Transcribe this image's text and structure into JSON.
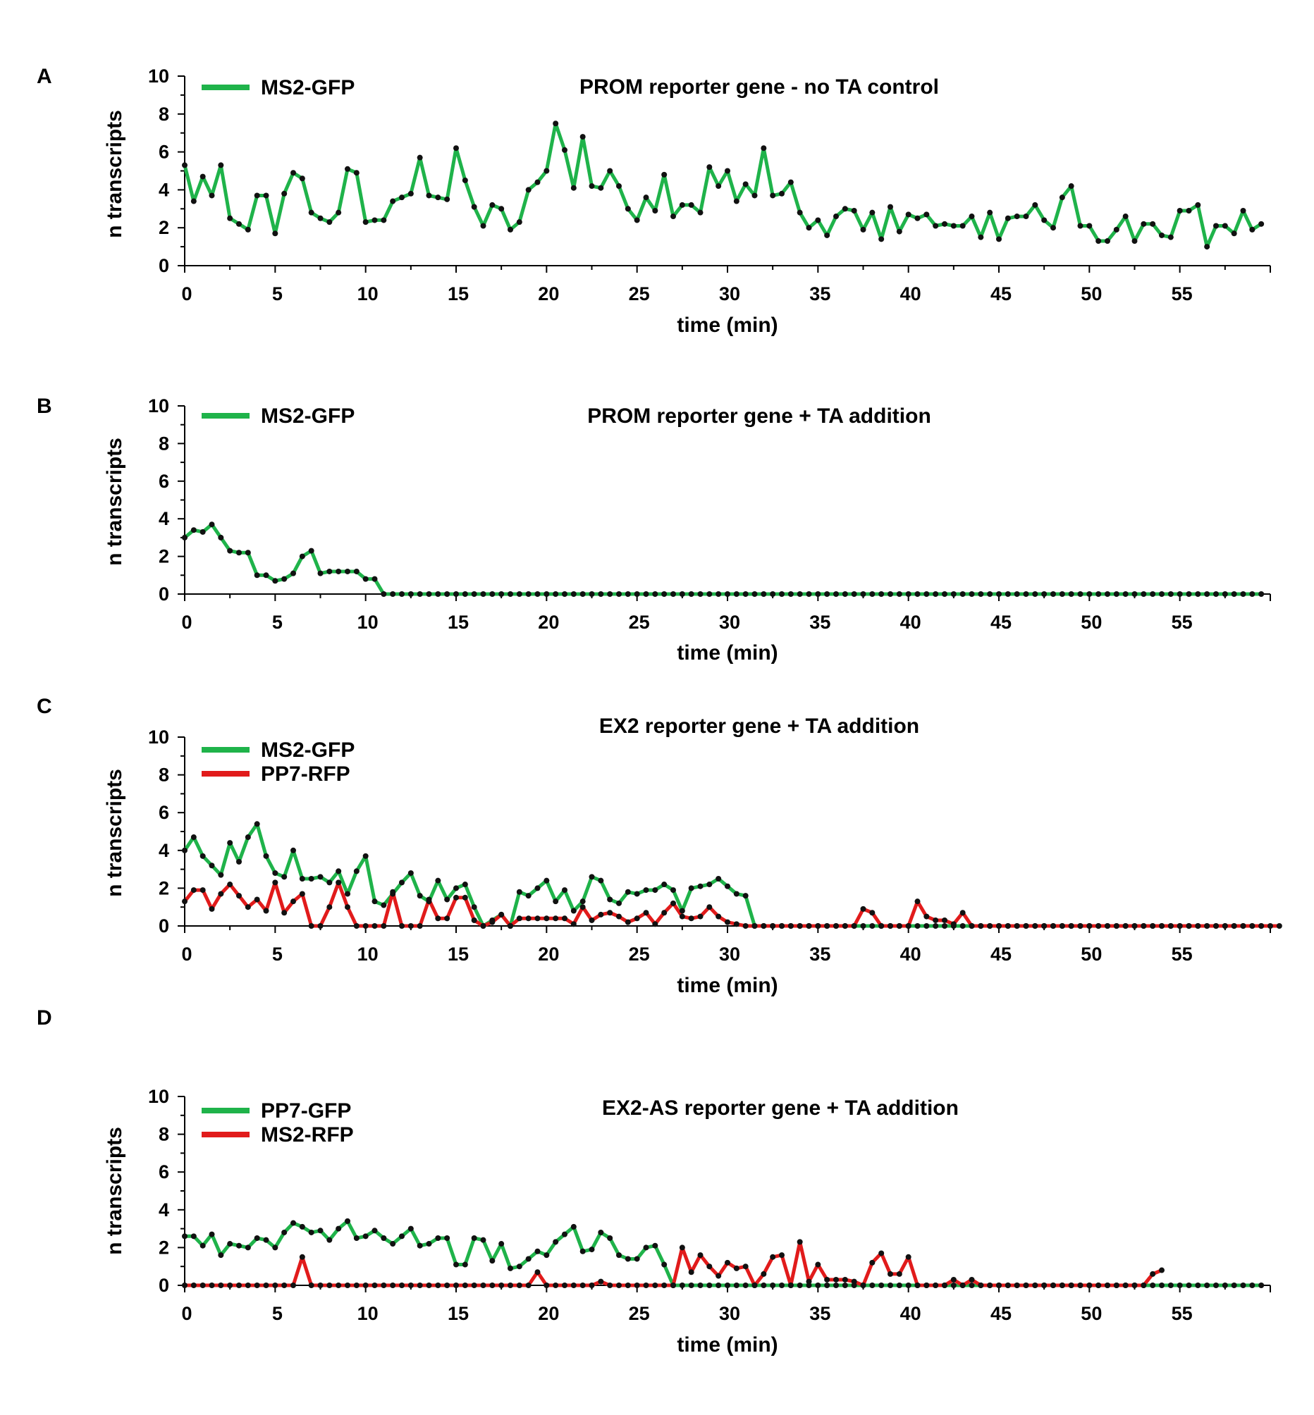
{
  "chart_data": [
    {
      "type": "line",
      "letter": "A",
      "title": "PROM reporter gene - no TA control",
      "xlabel": "time (min)",
      "ylabel": "n transcripts",
      "xlim": [
        0,
        60
      ],
      "ylim": [
        0,
        10
      ],
      "xticks": [
        0,
        5,
        10,
        15,
        20,
        25,
        30,
        35,
        40,
        45,
        50,
        55
      ],
      "yticks": [
        0,
        2,
        4,
        6,
        8,
        10
      ],
      "dt": 0.5,
      "series": [
        {
          "name": "MS2-GFP",
          "color": "#1fb34a",
          "values": [
            5.3,
            3.4,
            4.7,
            3.7,
            5.3,
            2.5,
            2.2,
            1.9,
            3.7,
            3.7,
            1.7,
            3.8,
            4.9,
            4.6,
            2.8,
            2.5,
            2.3,
            2.8,
            5.1,
            4.9,
            2.3,
            2.4,
            2.4,
            3.4,
            3.6,
            3.8,
            5.7,
            3.7,
            3.6,
            3.5,
            6.2,
            4.5,
            3.1,
            2.1,
            3.2,
            3.0,
            1.9,
            2.3,
            4.0,
            4.4,
            5.0,
            7.5,
            6.1,
            4.1,
            6.8,
            4.2,
            4.1,
            5.0,
            4.2,
            3.0,
            2.4,
            3.6,
            2.9,
            4.8,
            2.6,
            3.2,
            3.2,
            2.8,
            5.2,
            4.2,
            5.0,
            3.4,
            4.3,
            3.7,
            6.2,
            3.7,
            3.8,
            4.4,
            2.8,
            2.0,
            2.4,
            1.6,
            2.6,
            3.0,
            2.9,
            1.9,
            2.8,
            1.4,
            3.1,
            1.8,
            2.7,
            2.5,
            2.7,
            2.1,
            2.2,
            2.1,
            2.1,
            2.6,
            1.5,
            2.8,
            1.4,
            2.5,
            2.6,
            2.6,
            3.2,
            2.4,
            2.0,
            3.6,
            4.2,
            2.1,
            2.1,
            1.3,
            1.3,
            1.9,
            2.6,
            1.3,
            2.2,
            2.2,
            1.6,
            1.5,
            2.9,
            2.9,
            3.2,
            1.0,
            2.1,
            2.1,
            1.7,
            2.9,
            1.9,
            2.2
          ]
        }
      ]
    },
    {
      "type": "line",
      "letter": "B",
      "title": "PROM reporter gene + TA addition",
      "xlabel": "time (min)",
      "ylabel": "n transcripts",
      "xlim": [
        0,
        60
      ],
      "ylim": [
        0,
        10
      ],
      "xticks": [
        0,
        5,
        10,
        15,
        20,
        25,
        30,
        35,
        40,
        45,
        50,
        55
      ],
      "yticks": [
        0,
        2,
        4,
        6,
        8,
        10
      ],
      "dt": 0.5,
      "series": [
        {
          "name": "MS2-GFP",
          "color": "#1fb34a",
          "values": [
            3.0,
            3.4,
            3.3,
            3.7,
            3.0,
            2.3,
            2.2,
            2.2,
            1.0,
            1.0,
            0.7,
            0.8,
            1.1,
            2.0,
            2.3,
            1.1,
            1.2,
            1.2,
            1.2,
            1.2,
            0.8,
            0.8,
            0,
            0,
            0,
            0,
            0,
            0,
            0,
            0,
            0,
            0,
            0,
            0,
            0,
            0,
            0,
            0,
            0,
            0,
            0,
            0,
            0,
            0,
            0,
            0,
            0,
            0,
            0,
            0,
            0,
            0,
            0,
            0,
            0,
            0,
            0,
            0,
            0,
            0,
            0,
            0,
            0,
            0,
            0,
            0,
            0,
            0,
            0,
            0,
            0,
            0,
            0,
            0,
            0,
            0,
            0,
            0,
            0,
            0,
            0,
            0,
            0,
            0,
            0,
            0,
            0,
            0,
            0,
            0,
            0,
            0,
            0,
            0,
            0,
            0,
            0,
            0,
            0,
            0,
            0,
            0,
            0,
            0,
            0,
            0,
            0,
            0,
            0,
            0,
            0,
            0,
            0,
            0,
            0,
            0,
            0,
            0,
            0,
            0
          ]
        }
      ]
    },
    {
      "type": "line",
      "letter": "C",
      "title": "EX2 reporter gene + TA addition",
      "xlabel": "time (min)",
      "ylabel": "n transcripts",
      "xlim": [
        0,
        60
      ],
      "ylim": [
        0,
        10
      ],
      "xticks": [
        0,
        5,
        10,
        15,
        20,
        25,
        30,
        35,
        40,
        45,
        50,
        55
      ],
      "yticks": [
        0,
        2,
        4,
        6,
        8,
        10
      ],
      "dt": 0.5,
      "series": [
        {
          "name": "MS2-GFP",
          "color": "#1fb34a",
          "values": [
            4.0,
            4.7,
            3.7,
            3.2,
            2.7,
            4.4,
            3.4,
            4.7,
            5.4,
            3.7,
            2.8,
            2.6,
            4.0,
            2.5,
            2.5,
            2.6,
            2.3,
            2.9,
            1.7,
            2.9,
            3.7,
            1.3,
            1.1,
            1.7,
            2.3,
            2.8,
            1.6,
            1.3,
            2.4,
            1.4,
            2.0,
            2.2,
            1.0,
            0,
            0.3,
            0.6,
            0,
            1.8,
            1.6,
            2.0,
            2.4,
            1.3,
            1.9,
            0.8,
            1.3,
            2.6,
            2.4,
            1.4,
            1.2,
            1.8,
            1.7,
            1.9,
            1.9,
            2.2,
            1.9,
            0.8,
            2.0,
            2.1,
            2.2,
            2.5,
            2.1,
            1.7,
            1.6,
            0,
            0,
            0,
            0,
            0,
            0,
            0,
            0,
            0,
            0,
            0,
            0,
            0,
            0,
            0,
            0,
            0,
            0,
            0,
            0,
            0,
            0,
            0,
            0,
            0,
            0,
            0,
            0,
            0,
            0,
            0,
            0,
            0,
            0,
            0,
            0,
            0,
            0,
            0,
            0,
            0,
            0,
            0,
            0,
            0,
            0,
            0,
            0,
            0,
            0,
            0,
            0,
            0,
            0,
            0,
            0,
            0
          ]
        },
        {
          "name": "PP7-RFP",
          "color": "#e11b1b",
          "values": [
            1.3,
            1.9,
            1.9,
            0.9,
            1.7,
            2.2,
            1.6,
            1.0,
            1.4,
            0.8,
            2.3,
            0.7,
            1.3,
            1.7,
            0,
            0,
            1.0,
            2.3,
            1.0,
            0,
            0,
            0,
            0,
            1.8,
            0,
            0,
            0,
            1.4,
            0.4,
            0.4,
            1.5,
            1.5,
            0.3,
            0,
            0.2,
            0.6,
            0,
            0.4,
            0.4,
            0.4,
            0.4,
            0.4,
            0.4,
            0.1,
            1.0,
            0.3,
            0.6,
            0.7,
            0.5,
            0.2,
            0.4,
            0.7,
            0.1,
            0.7,
            1.2,
            0.5,
            0.4,
            0.5,
            1.0,
            0.5,
            0.2,
            0.1,
            0,
            0,
            0,
            0,
            0,
            0,
            0,
            0,
            0,
            0,
            0,
            0,
            0,
            0.9,
            0.7,
            0,
            0,
            0,
            0,
            1.3,
            0.5,
            0.3,
            0.3,
            0.1,
            0.7,
            0,
            0,
            0,
            0,
            0,
            0,
            0,
            0,
            0,
            0,
            0,
            0,
            0,
            0,
            0,
            0,
            0,
            0,
            0,
            0,
            0,
            0,
            0,
            0,
            0,
            0,
            0,
            0,
            0,
            0,
            0,
            0,
            0,
            0,
            0
          ]
        }
      ]
    },
    {
      "type": "line",
      "letter": "D",
      "title": "EX2-AS reporter gene + TA addition",
      "xlabel": "time (min)",
      "ylabel": "n transcripts",
      "xlim": [
        0,
        60
      ],
      "ylim": [
        0,
        10
      ],
      "xticks": [
        0,
        5,
        10,
        15,
        20,
        25,
        30,
        35,
        40,
        45,
        50,
        55
      ],
      "yticks": [
        0,
        2,
        4,
        6,
        8,
        10
      ],
      "dt": 0.5,
      "series": [
        {
          "name": "PP7-GFP",
          "color": "#1fb34a",
          "values": [
            2.6,
            2.6,
            2.1,
            2.7,
            1.6,
            2.2,
            2.1,
            2.0,
            2.5,
            2.4,
            2.0,
            2.8,
            3.3,
            3.1,
            2.8,
            2.9,
            2.4,
            3.0,
            3.4,
            2.5,
            2.6,
            2.9,
            2.5,
            2.2,
            2.6,
            3.0,
            2.1,
            2.2,
            2.5,
            2.5,
            1.1,
            1.1,
            2.5,
            2.4,
            1.3,
            2.2,
            0.9,
            1.0,
            1.4,
            1.8,
            1.6,
            2.3,
            2.7,
            3.1,
            1.8,
            1.9,
            2.8,
            2.5,
            1.6,
            1.4,
            1.4,
            2.0,
            2.1,
            1.1,
            0,
            0,
            0,
            0,
            0,
            0,
            0,
            0,
            0,
            0,
            0,
            0,
            0,
            0,
            0,
            0,
            0,
            0,
            0,
            0,
            0,
            0,
            0,
            0,
            0,
            0,
            0,
            0,
            0,
            0,
            0,
            0,
            0,
            0,
            0,
            0,
            0,
            0,
            0,
            0,
            0,
            0,
            0,
            0,
            0,
            0,
            0,
            0,
            0,
            0,
            0,
            0,
            0,
            0,
            0,
            0,
            0,
            0,
            0,
            0,
            0,
            0,
            0,
            0,
            0,
            0
          ]
        },
        {
          "name": "MS2-RFP",
          "color": "#e11b1b",
          "values": [
            0,
            0,
            0,
            0,
            0,
            0,
            0,
            0,
            0,
            0,
            0,
            0,
            0,
            1.5,
            0,
            0,
            0,
            0,
            0,
            0,
            0,
            0,
            0,
            0,
            0,
            0,
            0,
            0,
            0,
            0,
            0,
            0,
            0,
            0,
            0,
            0,
            0,
            0,
            0,
            0.7,
            0,
            0,
            0,
            0,
            0,
            0,
            0.2,
            0,
            0,
            0,
            0,
            0,
            0,
            0,
            0,
            2.0,
            0.7,
            1.6,
            1.0,
            0.5,
            1.2,
            0.9,
            1.0,
            0,
            0.6,
            1.5,
            1.6,
            0,
            2.3,
            0.2,
            1.1,
            0.3,
            0.3,
            0.3,
            0.2,
            0,
            1.2,
            1.7,
            0.6,
            0.6,
            1.5,
            0,
            0,
            0,
            0,
            0.3,
            0,
            0.3,
            0,
            0,
            0,
            0,
            0,
            0,
            0,
            0,
            0,
            0,
            0,
            0,
            0,
            0,
            0,
            0,
            0,
            0,
            0,
            0.6,
            0.8
          ]
        }
      ]
    }
  ]
}
